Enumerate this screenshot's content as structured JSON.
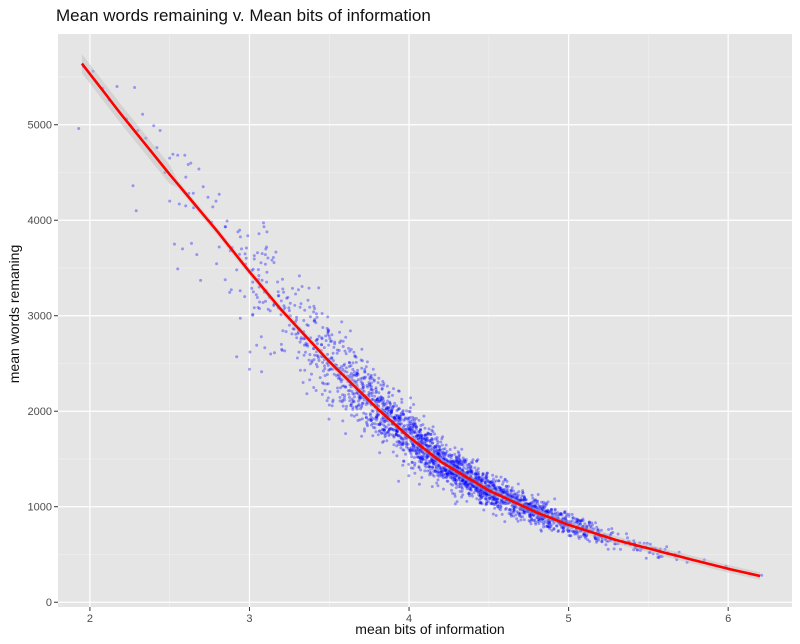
{
  "chart_data": {
    "type": "scatter",
    "title": "Mean words remaining v. Mean bits of information",
    "xlabel": "mean bits of information",
    "ylabel": "mean words remaning",
    "xlim": [
      1.8,
      6.4
    ],
    "ylim": [
      -50,
      5950
    ],
    "x_ticks": [
      2,
      3,
      4,
      5,
      6
    ],
    "y_ticks": [
      0,
      1000,
      2000,
      3000,
      4000,
      5000
    ],
    "x_tick_labels": [
      "2",
      "3",
      "4",
      "5",
      "6"
    ],
    "y_tick_labels": [
      "0",
      "1000",
      "2000",
      "3000",
      "4000",
      "5000"
    ],
    "grid": true,
    "colors": {
      "panel_background": "#e5e5e5",
      "grid_major": "#ffffff",
      "grid_minor": "#f0f0f0",
      "points": "#0000ff",
      "trend_line": "#ff0000",
      "confidence_band": "#bdbdbd"
    },
    "series": [
      {
        "type": "scatter",
        "points": [
          [
            1.93,
            4960
          ],
          [
            1.96,
            5610
          ],
          [
            2.02,
            5560
          ],
          [
            2.08,
            5380
          ],
          [
            2.12,
            5260
          ],
          [
            2.17,
            5400
          ],
          [
            2.23,
            5060
          ],
          [
            2.28,
            5390
          ],
          [
            2.3,
            4940
          ],
          [
            2.33,
            5110
          ],
          [
            2.35,
            4860
          ],
          [
            2.38,
            4730
          ],
          [
            2.4,
            4990
          ],
          [
            2.42,
            4760
          ],
          [
            2.44,
            4940
          ],
          [
            2.47,
            4500
          ],
          [
            2.5,
            4650
          ],
          [
            2.52,
            4690
          ],
          [
            2.55,
            4680
          ],
          [
            2.27,
            4360
          ],
          [
            2.29,
            4100
          ],
          [
            2.5,
            4200
          ],
          [
            2.53,
            3750
          ],
          [
            2.58,
            3700
          ],
          [
            2.56,
            4170
          ],
          [
            2.6,
            4150
          ],
          [
            2.62,
            4280
          ],
          [
            2.65,
            4130
          ],
          [
            2.67,
            3640
          ],
          [
            2.71,
            4350
          ],
          [
            2.74,
            4240
          ],
          [
            2.77,
            4140
          ],
          [
            2.79,
            4200
          ],
          [
            2.81,
            3720
          ],
          [
            2.55,
            3490
          ],
          [
            2.85,
            3930
          ],
          [
            2.88,
            3680
          ],
          [
            2.92,
            3480
          ],
          [
            2.95,
            3700
          ],
          [
            2.97,
            3200
          ],
          [
            3.0,
            3460
          ],
          [
            3.03,
            3630
          ],
          [
            3.07,
            3310
          ],
          [
            3.1,
            3540
          ],
          [
            3.13,
            3050
          ],
          [
            3.15,
            3610
          ],
          [
            3.18,
            3250
          ],
          [
            3.2,
            2700
          ],
          [
            3.25,
            2900
          ],
          [
            3.28,
            2860
          ],
          [
            2.92,
            2570
          ],
          [
            3.0,
            2440
          ],
          [
            3.05,
            3660
          ],
          [
            3.08,
            3650
          ],
          [
            3.1,
            3640
          ]
        ]
      },
      {
        "type": "line",
        "name": "",
        "x": [
          1.95,
          2.2,
          2.5,
          2.8,
          3.0,
          3.2,
          3.5,
          3.8,
          4.0,
          4.2,
          4.5,
          4.8,
          5.0,
          5.3,
          5.6,
          6.0,
          6.2
        ],
        "values": [
          5640,
          5100,
          4480,
          3880,
          3460,
          3060,
          2520,
          2030,
          1730,
          1470,
          1170,
          940,
          810,
          650,
          520,
          350,
          275
        ]
      }
    ]
  }
}
